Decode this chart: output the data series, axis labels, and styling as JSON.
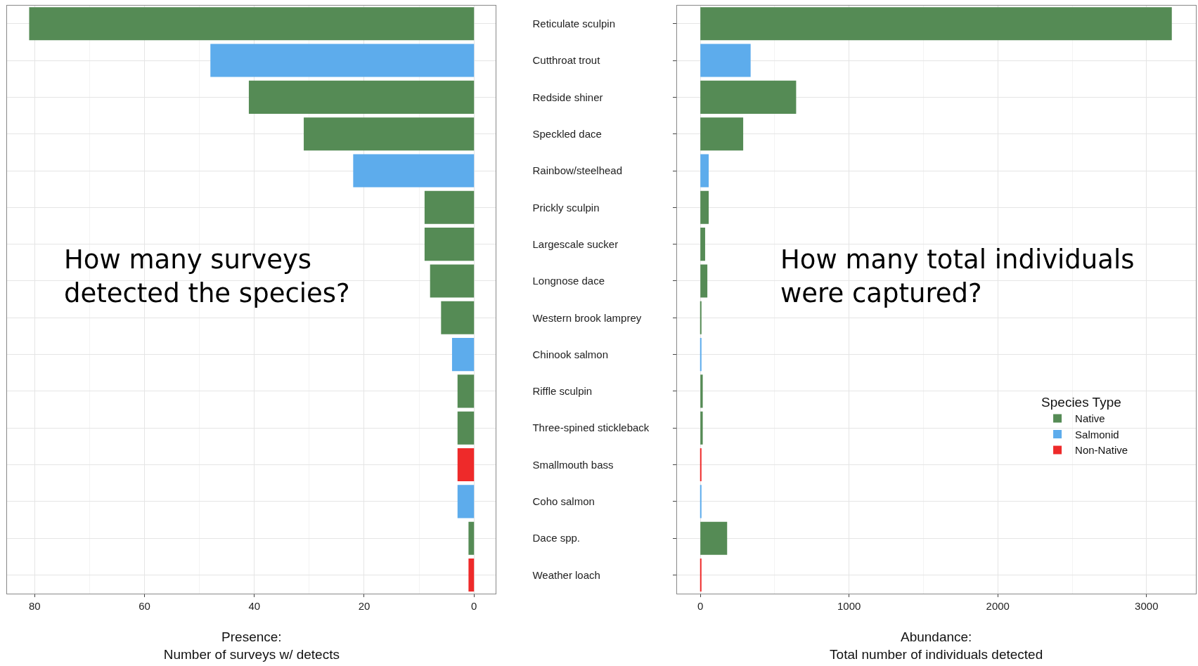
{
  "chart_data": [
    {
      "type": "bar",
      "orientation": "horizontal",
      "xlabel": "Presence:\nNumber of surveys w/ detects",
      "categories": [
        "Reticulate sculpin",
        "Cutthroat trout",
        "Redside shiner",
        "Speckled dace",
        "Rainbow/steelhead",
        "Prickly sculpin",
        "Largescale sucker",
        "Longnose dace",
        "Western brook lamprey",
        "Chinook salmon",
        "Riffle sculpin",
        "Three-spined stickleback",
        "Smallmouth bass",
        "Coho salmon",
        "Dace spp.",
        "Weather loach"
      ],
      "series": [
        {
          "color": "#558b55",
          "values": [
            81,
            null,
            41,
            31,
            null,
            9,
            9,
            8,
            6,
            null,
            3,
            3,
            null,
            null,
            1,
            null
          ]
        },
        {
          "color": "#5dacec",
          "values": [
            null,
            48,
            null,
            null,
            22,
            null,
            null,
            null,
            null,
            4,
            null,
            null,
            null,
            3,
            null,
            null
          ]
        },
        {
          "color": "#ee2a2a",
          "values": [
            null,
            null,
            null,
            null,
            null,
            null,
            null,
            null,
            null,
            null,
            null,
            null,
            3,
            null,
            null,
            1
          ]
        }
      ],
      "xlim": [
        85,
        -4
      ],
      "xticks": [
        80,
        60,
        40,
        20,
        0
      ],
      "grid": true,
      "annotations": [
        "How many surveys\ndetected the species?"
      ]
    },
    {
      "type": "bar",
      "orientation": "horizontal",
      "xlabel": "Abundance:\nTotal number of individuals detected",
      "categories": [
        null,
        null,
        null,
        null,
        null,
        null,
        null,
        null,
        null,
        null,
        null,
        null,
        null,
        null,
        null,
        null
      ],
      "series": [
        {
          "name": "Native",
          "color": "#558b55",
          "values": [
            3170,
            null,
            644,
            288,
            null,
            56,
            32,
            47,
            5,
            null,
            16,
            16,
            null,
            null,
            180,
            null
          ]
        },
        {
          "name": "Salmonid",
          "color": "#5dacec",
          "values": [
            null,
            338,
            null,
            null,
            56,
            null,
            null,
            null,
            null,
            5,
            null,
            null,
            null,
            3,
            null,
            null
          ]
        },
        {
          "name": "Non-Native",
          "color": "#ee2a2a",
          "values": [
            null,
            null,
            null,
            null,
            null,
            null,
            null,
            null,
            null,
            null,
            null,
            null,
            3,
            null,
            null,
            3
          ]
        }
      ],
      "xlim": [
        -158,
        3330
      ],
      "xticks": [
        0,
        1000,
        2000,
        3000
      ],
      "grid": true,
      "legend": "bottom right",
      "legend_title": "Species Type",
      "annotations": [
        "How many total individuals\nwere captured?"
      ]
    }
  ]
}
